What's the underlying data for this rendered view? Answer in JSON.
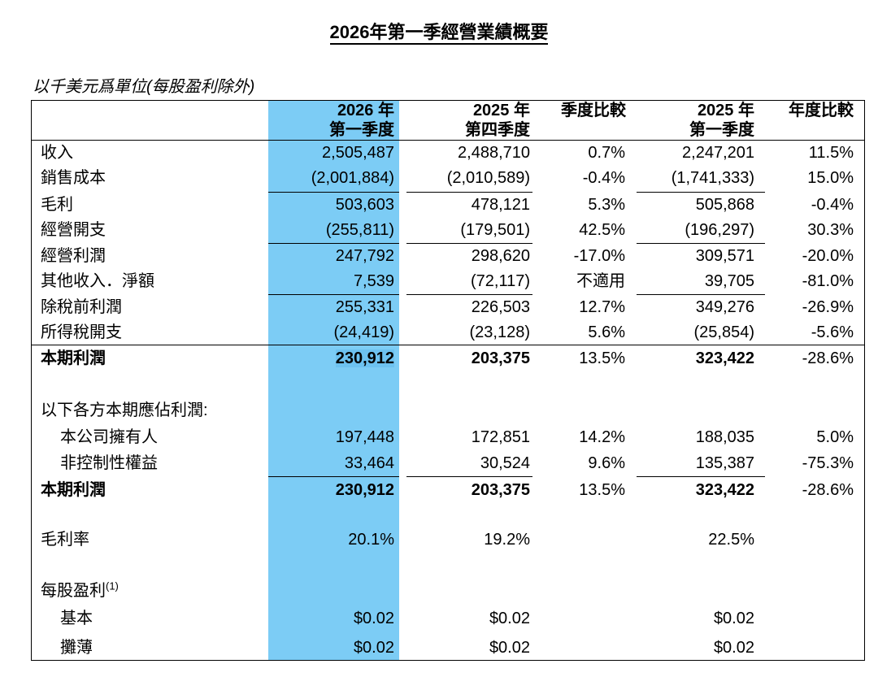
{
  "title": "2026年第一季經營業績概要",
  "unit_note": "以千美元爲單位(每股盈利除外)",
  "headers": {
    "q1_2026": [
      "2026 年",
      "第一季度"
    ],
    "q4_2025": [
      "2025 年",
      "第四季度"
    ],
    "qoq": "季度比較",
    "q1_2025": [
      "2025 年",
      "第一季度"
    ],
    "yoy": "年度比較"
  },
  "highlight_color": "#7cccf5",
  "rows": [
    {
      "label": "收入",
      "v1": "2,505,487",
      "v2": "2,488,710",
      "v3": "0.7%",
      "v4": "2,247,201",
      "v5": "11.5%"
    },
    {
      "label": "銷售成本",
      "v1": "(2,001,884)",
      "v2": "(2,010,589)",
      "v3": "-0.4%",
      "v4": "(1,741,333)",
      "v5": "15.0%"
    },
    {
      "label": "毛利",
      "v1": "503,603",
      "v2": "478,121",
      "v3": "5.3%",
      "v4": "505,868",
      "v5": "-0.4%"
    },
    {
      "label": "經營開支",
      "v1": "(255,811)",
      "v2": "(179,501)",
      "v3": "42.5%",
      "v4": "(196,297)",
      "v5": "30.3%"
    },
    {
      "label": "經營利潤",
      "v1": "247,792",
      "v2": "298,620",
      "v3": "-17.0%",
      "v4": "309,571",
      "v5": "-20.0%"
    },
    {
      "label": "其他收入．淨額",
      "v1": "7,539",
      "v2": "(72,117)",
      "v3": "不適用",
      "v4": "39,705",
      "v5": "-81.0%"
    },
    {
      "label": "除稅前利潤",
      "v1": "255,331",
      "v2": "226,503",
      "v3": "12.7%",
      "v4": "349,276",
      "v5": "-26.9%"
    },
    {
      "label": "所得稅開支",
      "v1": "(24,419)",
      "v2": "(23,128)",
      "v3": "5.6%",
      "v4": "(25,854)",
      "v5": "-5.6%"
    },
    {
      "label": "本期利潤",
      "v1": "230,912",
      "v2": "203,375",
      "v3": "13.5%",
      "v4": "323,422",
      "v5": "-28.6%"
    },
    {
      "label": "以下各方本期應佔利潤:"
    },
    {
      "label": "本公司擁有人",
      "v1": "197,448",
      "v2": "172,851",
      "v3": "14.2%",
      "v4": "188,035",
      "v5": "5.0%"
    },
    {
      "label": "非控制性權益",
      "v1": "33,464",
      "v2": "30,524",
      "v3": "9.6%",
      "v4": "135,387",
      "v5": "-75.3%"
    },
    {
      "label": "本期利潤",
      "v1": "230,912",
      "v2": "203,375",
      "v3": "13.5%",
      "v4": "323,422",
      "v5": "-28.6%"
    },
    {
      "label": "毛利率",
      "v1": "20.1%",
      "v2": "19.2%",
      "v4": "22.5%"
    },
    {
      "label": "每股盈利",
      "sup": "(1)"
    },
    {
      "label": "基本",
      "v1": "$0.02",
      "v2": "$0.02",
      "v4": "$0.02"
    },
    {
      "label": "攤薄",
      "v1": "$0.02",
      "v2": "$0.02",
      "v4": "$0.02"
    }
  ]
}
